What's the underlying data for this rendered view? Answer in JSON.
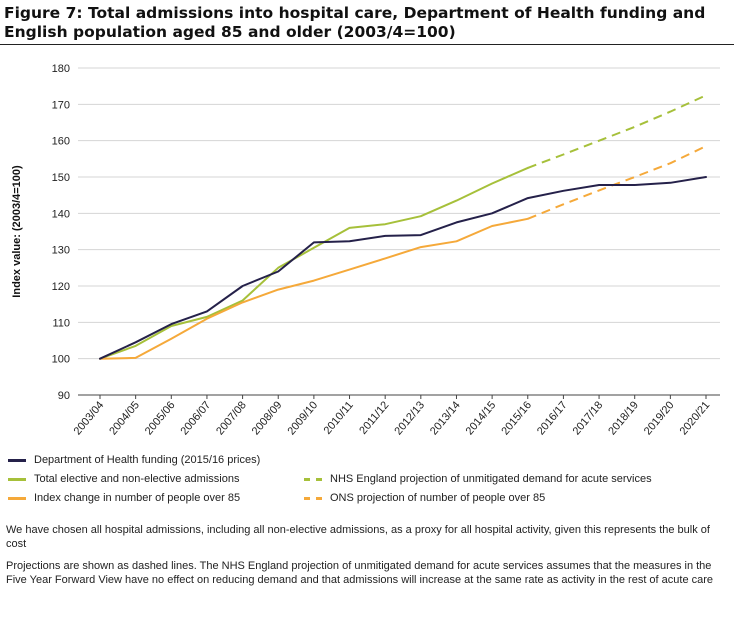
{
  "title": "Figure 7: Total admissions into hospital care, Department of Health funding and English population aged 85 and older (2003/4=100)",
  "chart_data": {
    "type": "line",
    "ylabel": "Index value: (2003/4=100)",
    "xlabel": "",
    "ylim": [
      90,
      180
    ],
    "yticks": [
      90,
      100,
      110,
      120,
      130,
      140,
      150,
      160,
      170,
      180
    ],
    "categories": [
      "2003/04",
      "2004/05",
      "2005/06",
      "2006/07",
      "2007/08",
      "2008/09",
      "2009/10",
      "2010/11",
      "2011/12",
      "2012/13",
      "2013/14",
      "2014/15",
      "2015/16",
      "2016/17",
      "2017/18",
      "2018/19",
      "2019/20",
      "2020/21"
    ],
    "grid": true,
    "series": [
      {
        "name": "Department of Health funding (2015/16 prices)",
        "color": "#25214a",
        "style": "solid",
        "values": [
          100,
          104.5,
          109.5,
          113,
          120,
          124,
          132,
          132.3,
          133.8,
          134,
          137.5,
          140,
          144.2,
          146.2,
          147.8,
          147.8,
          148.4,
          150
        ]
      },
      {
        "name": "Total elective and non-elective admissions",
        "color": "#a6c03a",
        "style": "solid",
        "values": [
          100,
          103.5,
          109,
          111.5,
          116,
          125,
          130.5,
          136,
          137,
          139.2,
          143.5,
          148.2,
          152.5,
          null,
          null,
          null,
          null,
          null
        ]
      },
      {
        "name": "Index change in number of people over 85",
        "color": "#f5a93a",
        "style": "solid",
        "values": [
          100,
          100.2,
          105.5,
          111,
          115.5,
          119,
          121.5,
          124.5,
          127.6,
          130.7,
          132.3,
          136.5,
          138.5,
          null,
          null,
          null,
          null,
          null
        ]
      },
      {
        "name": "NHS England projection of unmitigated demand for acute services",
        "color": "#a6c03a",
        "style": "dashed",
        "values": [
          null,
          null,
          null,
          null,
          null,
          null,
          null,
          null,
          null,
          null,
          null,
          null,
          152.5,
          156.2,
          160,
          163.8,
          168,
          172.5
        ]
      },
      {
        "name": "ONS projection of number of people over 85",
        "color": "#f5a93a",
        "style": "dashed",
        "values": [
          null,
          null,
          null,
          null,
          null,
          null,
          null,
          null,
          null,
          null,
          null,
          null,
          138.5,
          142.5,
          146.3,
          150,
          153.8,
          158.5
        ]
      }
    ]
  },
  "legend": [
    {
      "label": "Department of Health funding (2015/16 prices)",
      "color": "#25214a",
      "style": "solid"
    },
    {
      "label": "NHS England projection of unmitigated demand for acute services",
      "color": "#a6c03a",
      "style": "dashed"
    },
    {
      "label": "Total elective and non-elective admissions",
      "color": "#a6c03a",
      "style": "solid"
    },
    {
      "label": "ONS projection of number of people over 85",
      "color": "#f5a93a",
      "style": "dashed"
    },
    {
      "label": "Index change in number of people over 85",
      "color": "#f5a93a",
      "style": "solid"
    }
  ],
  "notes": {
    "note1": "We have chosen all hospital admissions, including all non-elective admissions, as a proxy for all hospital activity, given this represents the bulk of cost",
    "note2": "Projections are shown as dashed lines. The NHS England projection of unmitigated demand for acute services assumes that the measures in the Five Year Forward View have no effect on reducing demand and that admissions will increase at the same rate as activity in the rest of acute care"
  }
}
